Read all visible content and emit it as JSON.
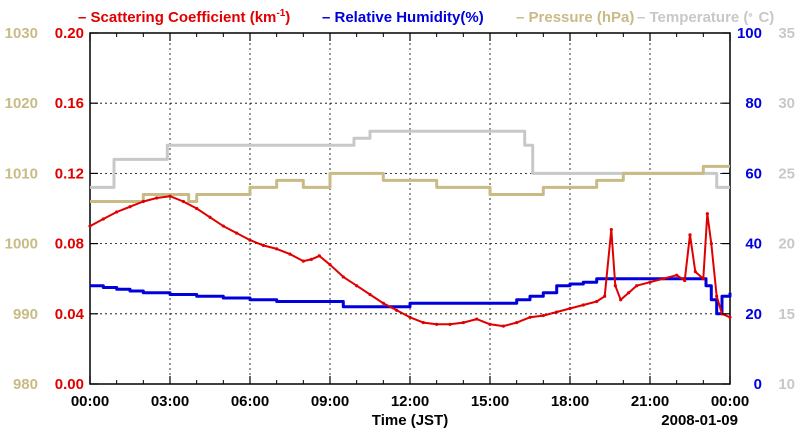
{
  "chart_data": {
    "type": "line",
    "title": "",
    "xlabel": "Time (JST)",
    "date_label": "2008-01-09",
    "x_ticks": [
      "00:00",
      "03:00",
      "06:00",
      "09:00",
      "12:00",
      "15:00",
      "18:00",
      "21:00",
      "00:00"
    ],
    "xlim_hours": [
      0,
      24
    ],
    "grid": true,
    "legend_position": "top",
    "legend": [
      {
        "key": "scat",
        "dash": "–",
        "text": "Scattering Coefficient (km",
        "sup": "-1",
        "tail": ")",
        "color": "#e00000"
      },
      {
        "key": "rh",
        "dash": "–",
        "text": "Relative Humidity(%)",
        "color": "#0000dd"
      },
      {
        "key": "pres",
        "dash": "–",
        "text": "Pressure (hPa)",
        "color": "#c8bb86"
      },
      {
        "key": "temp",
        "dash": "–",
        "text": "Temperature (",
        "sup": "。",
        "tail": "C)",
        "color": "#c8c8c8"
      }
    ],
    "axes": {
      "scattering": {
        "side": "left-inner",
        "ylim": [
          0,
          0.2
        ],
        "ticks": [
          "0.00",
          "0.04",
          "0.08",
          "0.12",
          "0.16",
          "0.20"
        ],
        "color": "#e00000"
      },
      "pressure": {
        "side": "left-outer",
        "ylim": [
          980,
          1030
        ],
        "ticks": [
          "980",
          "990",
          "1000",
          "1010",
          "1020",
          "1030"
        ],
        "color": "#c8bb86"
      },
      "humidity": {
        "side": "right-inner",
        "ylim": [
          0,
          100
        ],
        "ticks": [
          "0",
          "20",
          "40",
          "60",
          "80",
          "100"
        ],
        "color": "#0000dd"
      },
      "temperature": {
        "side": "right-outer",
        "ylim": [
          10,
          35
        ],
        "ticks": [
          "10",
          "15",
          "20",
          "25",
          "30",
          "35"
        ],
        "color": "#c8c8c8"
      }
    },
    "series": [
      {
        "name": "Scattering Coefficient",
        "axis": "scattering",
        "color": "#e00000",
        "x": [
          0,
          0.5,
          1,
          1.5,
          2,
          2.5,
          3,
          3.5,
          4,
          4.5,
          5,
          5.5,
          6,
          6.5,
          7,
          7.5,
          8,
          8.3,
          8.6,
          9,
          9.5,
          10,
          10.5,
          11,
          11.5,
          12,
          12.5,
          13,
          13.5,
          14,
          14.5,
          15,
          15.5,
          16,
          16.5,
          17,
          17.5,
          18,
          18.5,
          19,
          19.3,
          19.55,
          19.7,
          19.9,
          20.2,
          20.5,
          21,
          21.5,
          22,
          22.3,
          22.5,
          22.7,
          23,
          23.15,
          23.3,
          23.5,
          23.7,
          24
        ],
        "values": [
          0.09,
          0.094,
          0.098,
          0.101,
          0.104,
          0.106,
          0.107,
          0.104,
          0.1,
          0.095,
          0.09,
          0.086,
          0.082,
          0.079,
          0.077,
          0.074,
          0.07,
          0.071,
          0.073,
          0.068,
          0.061,
          0.056,
          0.051,
          0.046,
          0.042,
          0.038,
          0.035,
          0.034,
          0.034,
          0.035,
          0.037,
          0.034,
          0.033,
          0.035,
          0.038,
          0.039,
          0.041,
          0.043,
          0.045,
          0.047,
          0.05,
          0.088,
          0.056,
          0.048,
          0.052,
          0.056,
          0.058,
          0.06,
          0.062,
          0.059,
          0.085,
          0.064,
          0.06,
          0.097,
          0.08,
          0.05,
          0.04,
          0.038
        ]
      },
      {
        "name": "Relative Humidity",
        "axis": "humidity",
        "color": "#0000dd",
        "x": [
          0,
          0.5,
          1,
          1.5,
          2,
          3,
          4,
          5,
          6,
          7,
          8,
          9,
          9.5,
          10,
          11,
          12,
          13,
          14,
          15,
          16,
          16.5,
          17,
          17.5,
          18,
          18.5,
          19,
          20,
          21,
          22,
          22.8,
          23.1,
          23.3,
          23.5,
          23.7,
          24
        ],
        "values": [
          28,
          27.5,
          27,
          26.5,
          26,
          25.5,
          25,
          24.5,
          24,
          23.5,
          23.5,
          23.5,
          22,
          22,
          22,
          23,
          23,
          23,
          23,
          24,
          25,
          26,
          28,
          28.5,
          29,
          30,
          30,
          30,
          30,
          30,
          28,
          24,
          20,
          25,
          26
        ]
      },
      {
        "name": "Pressure",
        "axis": "pressure",
        "color": "#c8bb86",
        "x": [
          0,
          1,
          2,
          3,
          3.7,
          4,
          5,
          6,
          7,
          8,
          9,
          10,
          11,
          12,
          13,
          14,
          15,
          16,
          17,
          18,
          19,
          20,
          21,
          22,
          23,
          24
        ],
        "values": [
          1006,
          1006,
          1007,
          1007,
          1006,
          1007,
          1007,
          1008,
          1009,
          1008,
          1010,
          1010,
          1009,
          1009,
          1008,
          1008,
          1007,
          1007,
          1008,
          1008,
          1009,
          1010,
          1010,
          1010,
          1011,
          1011
        ]
      },
      {
        "name": "Temperature",
        "axis": "temperature",
        "color": "#c8c8c8",
        "x": [
          0,
          0.5,
          0.9,
          1.5,
          2,
          2.9,
          3.5,
          5,
          7,
          8.5,
          9.3,
          9.9,
          10.5,
          12,
          14,
          15,
          15.9,
          16.3,
          16.6,
          18,
          20,
          22,
          23,
          23.5,
          24
        ],
        "values": [
          24,
          24,
          26,
          26,
          26,
          27,
          27,
          27,
          27,
          27,
          27,
          27.5,
          28,
          28,
          28,
          28,
          28,
          27,
          25,
          25,
          25,
          25,
          25,
          24,
          24
        ]
      }
    ]
  }
}
